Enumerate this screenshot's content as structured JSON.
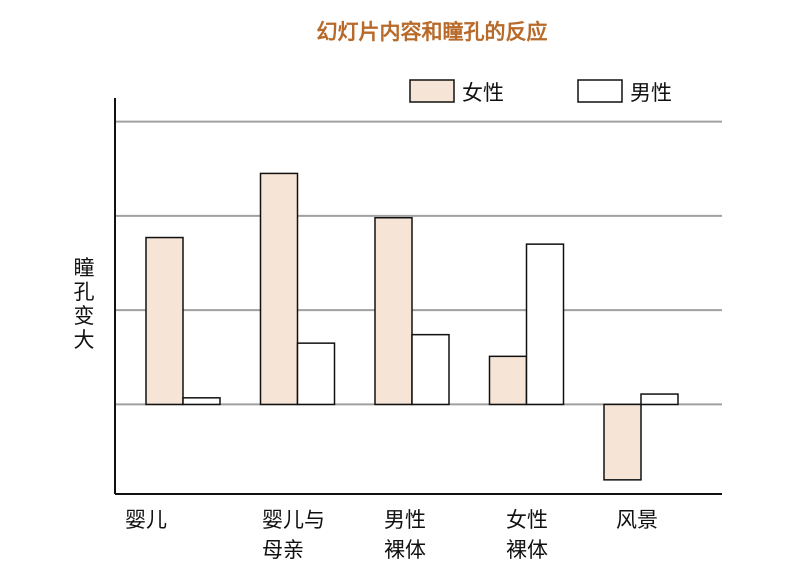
{
  "chart_data": {
    "type": "bar",
    "title": "幻灯片内容和瞳孔的反应",
    "ylabel": "瞳孔变大",
    "xlabel": "",
    "categories": [
      [
        "婴儿"
      ],
      [
        "婴儿与",
        "母亲"
      ],
      [
        "男性",
        "裸体"
      ],
      [
        "女性",
        "裸体"
      ],
      [
        "风景"
      ]
    ],
    "series": [
      {
        "name": "女性",
        "values": [
          1.77,
          2.45,
          1.98,
          0.51,
          -0.8
        ]
      },
      {
        "name": "男性",
        "values": [
          0.07,
          0.65,
          0.74,
          1.7,
          0.11
        ]
      }
    ],
    "ylim": [
      -0.95,
      3.25
    ],
    "grid": true,
    "legend": "top-right",
    "y_ticks_labeled": false,
    "colors": {
      "female_fill": "#f6e5d6",
      "male_fill": "#ffffff",
      "bar_stroke": "#111111",
      "grid": "#a0a0a0",
      "axis": "#111111",
      "title": "#b86a2a"
    }
  }
}
